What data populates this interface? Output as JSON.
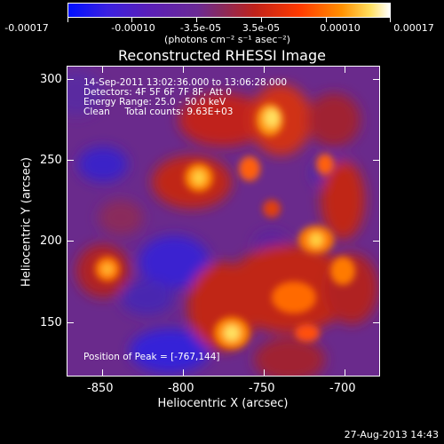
{
  "colorbar": {
    "tick_labels": [
      "-0.00017",
      "-0.00010",
      "-3.5e-05",
      "3.5e-05",
      "0.00010",
      "0.00017"
    ],
    "unit_label": "(photons cm⁻² s⁻¹ asec⁻²)"
  },
  "title": "Reconstructed RHESSI Image",
  "annotations": {
    "time_range": "14-Sep-2011 13:02:36.000 to 13:06:28.000",
    "detectors": "Detectors: 4F 5F 6F 7F 8F, Att 0",
    "energy": "Energy Range: 25.0 - 50.0 keV",
    "clean": "Clean     Total counts: 9.63E+03",
    "peak": "Position of Peak = [-767,144]"
  },
  "axes": {
    "xlabel": "Heliocentric X (arcsec)",
    "ylabel": "Heliocentric Y (arcsec)",
    "x_ticks": [
      "-850",
      "-800",
      "-750",
      "-700"
    ],
    "y_ticks": [
      "300",
      "250",
      "200",
      "150"
    ]
  },
  "timestamp": "27-Aug-2013 14:43",
  "colors": {
    "background": "#000000",
    "foreground": "#ffffff"
  }
}
